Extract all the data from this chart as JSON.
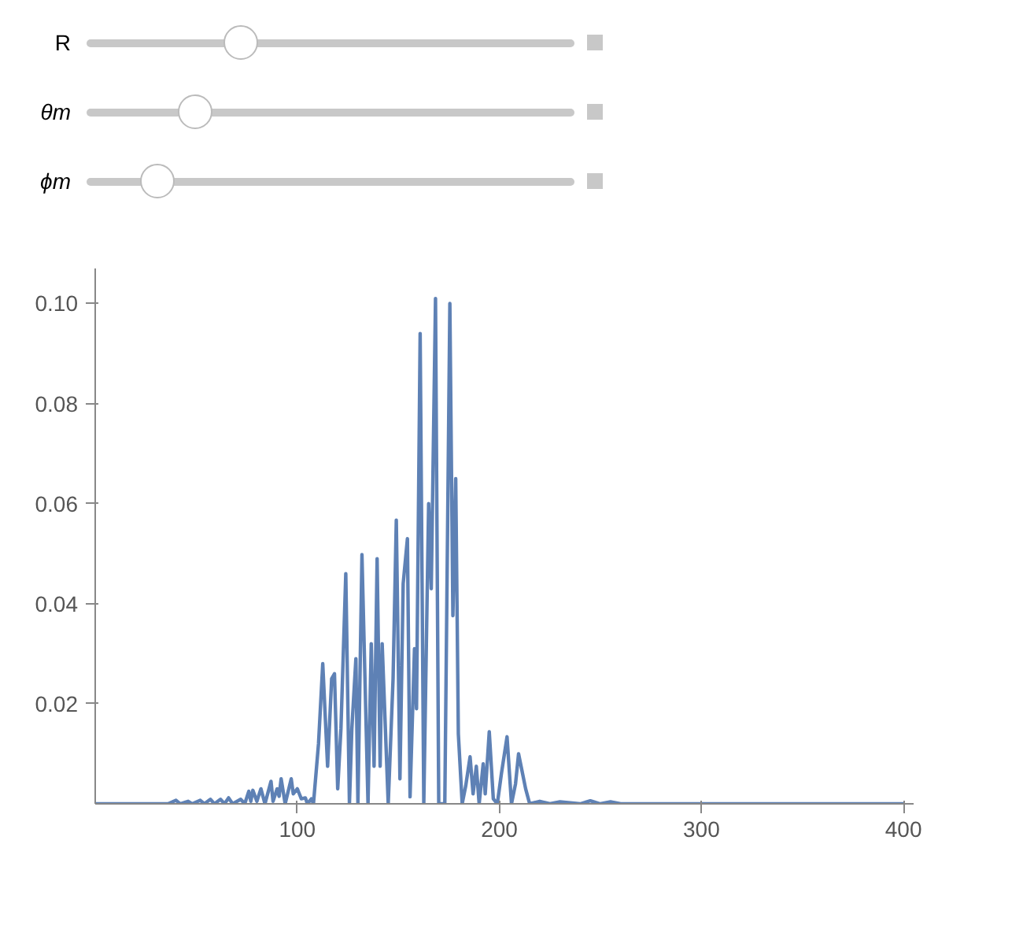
{
  "chart_data": {
    "type": "line",
    "annotations": [
      "R",
      "θm",
      "ϕm"
    ],
    "series": [
      {
        "color": "#5e81b5",
        "x": [
          0,
          10,
          20,
          30,
          36,
          40,
          42,
          46,
          48,
          52,
          54,
          57,
          59,
          62,
          64,
          66,
          68,
          72,
          74,
          76,
          77,
          78,
          80,
          82,
          84,
          87,
          88,
          90,
          91,
          92,
          94,
          97,
          98,
          100,
          101,
          102,
          104,
          105,
          107,
          108,
          110.5,
          112.6,
          115,
          117,
          118.4,
          120,
          121.6,
          124,
          125.8,
          127,
          129,
          130,
          132,
          135,
          136.6,
          138,
          139.5,
          141,
          142,
          145,
          147.4,
          149,
          150.8,
          152.4,
          154.5,
          155.8,
          158,
          159,
          160.8,
          162.6,
          165,
          166.3,
          168.4,
          170,
          173,
          175.5,
          177,
          178.4,
          179.7,
          181.6,
          183.4,
          185.5,
          187,
          188.6,
          190,
          192,
          193,
          195,
          197,
          199,
          201,
          203.8,
          206,
          208,
          209.5,
          211,
          213,
          215,
          220,
          225,
          230,
          240,
          245,
          250,
          255,
          260,
          270,
          300,
          350,
          400
        ],
        "values": [
          0,
          0,
          0,
          0,
          0,
          0.0007,
          0,
          0.0005,
          0,
          0.0007,
          0,
          0.0009,
          0,
          0.0009,
          0,
          0.0012,
          0,
          0.0009,
          0,
          0.0025,
          0.0005,
          0.0027,
          0.0005,
          0.003,
          0,
          0.0045,
          0.0005,
          0.003,
          0.0015,
          0.005,
          0,
          0.005,
          0.002,
          0.003,
          0.002,
          0.001,
          0.0012,
          0,
          0.001,
          0,
          0.012,
          0.028,
          0.0075,
          0.025,
          0.026,
          0.003,
          0.015,
          0.046,
          0,
          0.015,
          0.029,
          0,
          0.0498,
          0,
          0.032,
          0.0075,
          0.049,
          0.0075,
          0.032,
          0,
          0.025,
          0.0567,
          0.005,
          0.044,
          0.053,
          0.0014,
          0.031,
          0.019,
          0.094,
          0,
          0.06,
          0.043,
          0.101,
          0,
          0,
          0.1,
          0.0376,
          0.065,
          0.014,
          0,
          0.0037,
          0.0094,
          0.002,
          0.0075,
          0,
          0.008,
          0.002,
          0.0144,
          0.001,
          0,
          0.006,
          0.0134,
          0,
          0.004,
          0.01,
          0.007,
          0.003,
          0,
          0.0005,
          0,
          0.0004,
          0,
          0.0006,
          0,
          0.0004,
          0,
          0,
          0,
          0,
          0
        ]
      }
    ],
    "xlim": [
      0,
      405
    ],
    "ylim": [
      0,
      0.107
    ],
    "xticks": [
      100,
      200,
      300,
      400
    ],
    "yticks": [
      0.02,
      0.04,
      0.06,
      {
        "value": 0.1,
        "label": "0.10"
      },
      0.08
    ],
    "grid": false,
    "marker": "none",
    "line_style": "solid"
  }
}
